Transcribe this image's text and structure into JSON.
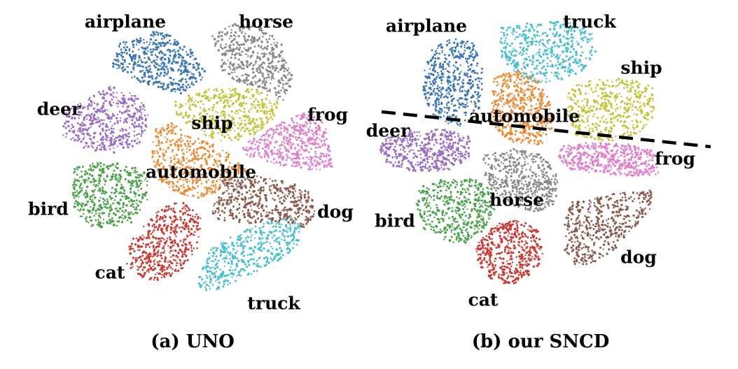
{
  "colors": {
    "airplane": "#3a76b6",
    "automobile": "#ee8a34",
    "bird": "#4aa34b",
    "cat": "#c93b34",
    "deer": "#9b6dc3",
    "dog": "#8a5a4d",
    "frog": "#e07fcb",
    "horse": "#8a8a8a",
    "ship": "#c3c43c",
    "truck": "#4bbfcf",
    "divider": "#000000"
  },
  "chart_data": [
    {
      "type": "scatter",
      "title": "(a) UNO",
      "clusters": [
        {
          "name": "airplane",
          "label": "airplane"
        },
        {
          "name": "horse",
          "label": "horse"
        },
        {
          "name": "deer",
          "label": "deer"
        },
        {
          "name": "ship",
          "label": "ship"
        },
        {
          "name": "frog",
          "label": "frog"
        },
        {
          "name": "automobile",
          "label": "automobile"
        },
        {
          "name": "bird",
          "label": "bird"
        },
        {
          "name": "dog",
          "label": "dog"
        },
        {
          "name": "cat",
          "label": "cat"
        },
        {
          "name": "truck",
          "label": "truck"
        }
      ]
    },
    {
      "type": "scatter",
      "title": "(b) our SNCD",
      "clusters": [
        {
          "name": "airplane",
          "label": "airplane"
        },
        {
          "name": "truck",
          "label": "truck"
        },
        {
          "name": "ship",
          "label": "ship"
        },
        {
          "name": "automobile",
          "label": "automobile"
        },
        {
          "name": "deer",
          "label": "deer"
        },
        {
          "name": "frog",
          "label": "frog"
        },
        {
          "name": "horse",
          "label": "horse"
        },
        {
          "name": "bird",
          "label": "bird"
        },
        {
          "name": "dog",
          "label": "dog"
        },
        {
          "name": "cat",
          "label": "cat"
        }
      ]
    }
  ]
}
